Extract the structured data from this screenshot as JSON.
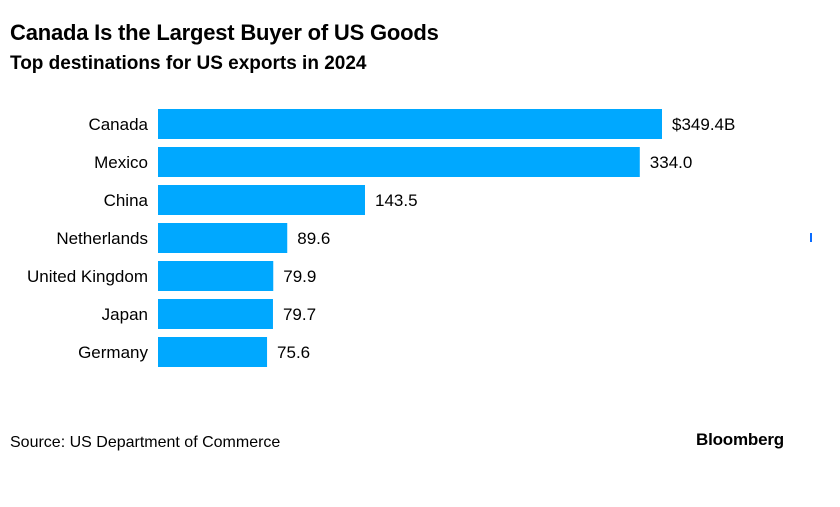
{
  "header": {
    "title": "Canada Is the Largest Buyer of US Goods",
    "subtitle": "Top destinations for US exports in 2024"
  },
  "footer": {
    "source": "Source: US Department of Commerce",
    "brand": "Bloomberg"
  },
  "colors": {
    "bar": "#00a8ff",
    "edge_mark": "#0a6cff"
  },
  "chart_data": {
    "type": "bar",
    "orientation": "horizontal",
    "title": "Canada Is the Largest Buyer of US Goods",
    "subtitle": "Top destinations for US exports in 2024",
    "categories": [
      "Canada",
      "Mexico",
      "China",
      "Netherlands",
      "United Kingdom",
      "Japan",
      "Germany"
    ],
    "values": [
      349.4,
      334.0,
      143.5,
      89.6,
      79.9,
      79.7,
      75.6
    ],
    "value_labels": [
      "$349.4B",
      "334.0",
      "143.5",
      "89.6",
      "79.9",
      "79.7",
      "75.6"
    ],
    "xlim": [
      0,
      349.4
    ],
    "grid": false,
    "legend": "none"
  }
}
